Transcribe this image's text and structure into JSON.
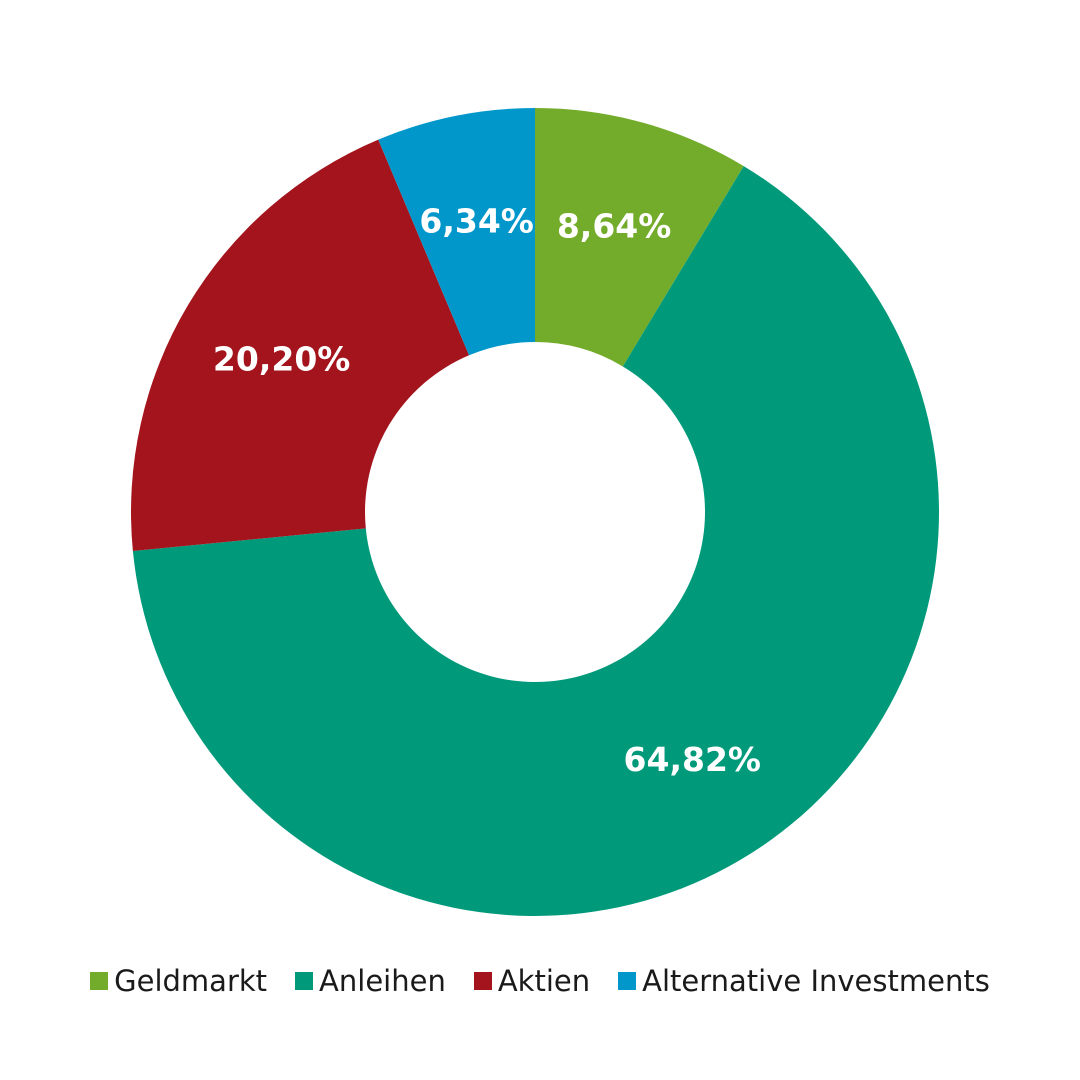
{
  "chart_data": {
    "type": "pie",
    "donut": true,
    "title": "",
    "slices": [
      {
        "label": "Geldmarkt",
        "value": 8.64,
        "display": "8,64%",
        "color": "#72AC2A"
      },
      {
        "label": "Anleihen",
        "value": 64.82,
        "display": "64,82%",
        "color": "#009A7B"
      },
      {
        "label": "Aktien",
        "value": 20.2,
        "display": "20,20%",
        "color": "#A3141D"
      },
      {
        "label": "Alternative Investments",
        "value": 6.34,
        "display": "6,34%",
        "color": "#0297CB"
      }
    ],
    "legend": {
      "placement": "bottom-center",
      "entries": [
        "Geldmarkt",
        "Anleihen",
        "Aktien",
        "Alternative Investments"
      ]
    }
  }
}
